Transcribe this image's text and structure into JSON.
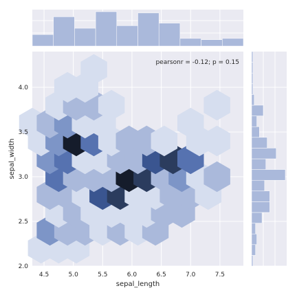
{
  "chart_data": {
    "type": "hexbin-joint",
    "xlabel": "sepal_length",
    "ylabel": "sepal_width",
    "xlim": [
      4.3,
      7.9
    ],
    "ylim": [
      2.0,
      4.4
    ],
    "x_ticks": [
      "4.5",
      "5.0",
      "5.5",
      "6.0",
      "6.5",
      "7.0",
      "7.5"
    ],
    "y_ticks": [
      "2.0",
      "2.5",
      "3.0",
      "3.5",
      "4.0"
    ],
    "annotation": "pearsonr = -0.12; p = 0.15",
    "grid": true,
    "colors": {
      "background": "#eaeaf2",
      "grid": "#ffffff",
      "hist": "#aab9db",
      "hex_scale": [
        "#d6deef",
        "#aab9db",
        "#7d95c7",
        "#5672b0",
        "#3a5590",
        "#2b3c5e",
        "#151c2b",
        "#000000"
      ]
    },
    "hex_grid": {
      "x0": 4.3,
      "dx": 0.3,
      "y0": 2.0,
      "dy": 0.2,
      "levels": {
        "max": 7,
        "cells": [
          [
            0,
            1,
            1
          ],
          [
            1,
            1,
            1
          ],
          [
            2,
            1,
            1
          ],
          [
            1,
            2,
            3
          ],
          [
            2,
            2,
            2
          ],
          [
            3,
            2,
            2
          ],
          [
            4,
            2,
            1
          ],
          [
            5,
            2,
            2
          ],
          [
            6,
            2,
            1
          ],
          [
            7,
            2,
            2
          ],
          [
            1,
            3,
            1
          ],
          [
            2,
            3,
            2
          ],
          [
            3,
            3,
            1
          ],
          [
            4,
            3,
            1
          ],
          [
            5,
            3,
            1
          ],
          [
            6,
            3,
            1
          ],
          [
            7,
            3,
            2
          ],
          [
            8,
            3,
            2
          ],
          [
            1,
            4,
            2
          ],
          [
            2,
            4,
            2
          ],
          [
            3,
            4,
            1
          ],
          [
            4,
            4,
            5
          ],
          [
            5,
            4,
            6
          ],
          [
            6,
            4,
            1
          ],
          [
            7,
            4,
            1
          ],
          [
            8,
            4,
            2
          ],
          [
            9,
            4,
            2
          ],
          [
            10,
            4,
            1
          ],
          [
            1,
            5,
            4
          ],
          [
            2,
            5,
            2
          ],
          [
            3,
            5,
            2
          ],
          [
            4,
            5,
            2
          ],
          [
            5,
            5,
            7
          ],
          [
            6,
            5,
            6
          ],
          [
            7,
            5,
            2
          ],
          [
            8,
            5,
            3
          ],
          [
            9,
            5,
            1
          ],
          [
            10,
            5,
            2
          ],
          [
            1,
            6,
            3
          ],
          [
            2,
            6,
            4
          ],
          [
            3,
            6,
            1
          ],
          [
            4,
            6,
            1
          ],
          [
            5,
            6,
            2
          ],
          [
            6,
            6,
            2
          ],
          [
            7,
            6,
            5
          ],
          [
            8,
            6,
            6
          ],
          [
            9,
            6,
            4
          ],
          [
            0,
            7,
            1
          ],
          [
            1,
            7,
            3
          ],
          [
            2,
            7,
            7
          ],
          [
            3,
            7,
            4
          ],
          [
            4,
            7,
            1
          ],
          [
            5,
            7,
            2
          ],
          [
            6,
            7,
            2
          ],
          [
            7,
            7,
            1
          ],
          [
            9,
            7,
            1
          ],
          [
            10,
            7,
            1
          ],
          [
            0,
            8,
            1
          ],
          [
            1,
            8,
            2
          ],
          [
            2,
            8,
            3
          ],
          [
            3,
            8,
            1
          ],
          [
            4,
            8,
            1
          ],
          [
            9,
            8,
            1
          ],
          [
            1,
            9,
            1
          ],
          [
            2,
            9,
            2
          ],
          [
            3,
            9,
            2
          ],
          [
            4,
            9,
            1
          ],
          [
            10,
            9,
            1
          ],
          [
            2,
            10,
            1
          ],
          [
            3,
            10,
            1
          ],
          [
            3,
            11,
            1
          ]
        ]
      }
    },
    "x_hist": {
      "bins": [
        4.3,
        4.66,
        5.02,
        5.38,
        5.74,
        6.1,
        6.46,
        6.82,
        7.18,
        7.54,
        7.9
      ],
      "counts": [
        9,
        23,
        14,
        27,
        16,
        26,
        18,
        6,
        5,
        6
      ]
    },
    "y_hist": {
      "bins": [
        2.0,
        2.12,
        2.24,
        2.36,
        2.48,
        2.6,
        2.72,
        2.84,
        2.96,
        3.08,
        3.2,
        3.32,
        3.44,
        3.56,
        3.68,
        3.8,
        3.92,
        4.04,
        4.16,
        4.28,
        4.4
      ],
      "counts": [
        1,
        3,
        4,
        3,
        8,
        14,
        14,
        10,
        26,
        11,
        19,
        12,
        6,
        4,
        9,
        2,
        1,
        1,
        1,
        1
      ]
    }
  }
}
